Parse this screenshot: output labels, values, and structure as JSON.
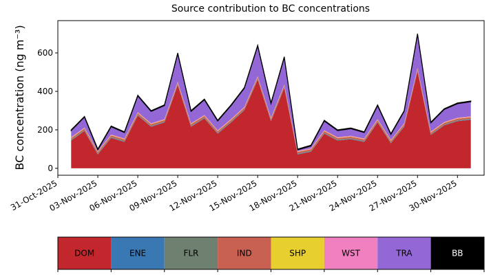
{
  "chart_data": {
    "type": "stacked_area",
    "title": "Source contribution to BC concentrations",
    "y_label": "BC concentration (ng m⁻³)",
    "x": [
      "01-Nov-2025",
      "02-Nov-2025",
      "03-Nov-2025",
      "04-Nov-2025",
      "05-Nov-2025",
      "06-Nov-2025",
      "07-Nov-2025",
      "08-Nov-2025",
      "09-Nov-2025",
      "10-Nov-2025",
      "11-Nov-2025",
      "12-Nov-2025",
      "13-Nov-2025",
      "14-Nov-2025",
      "15-Nov-2025",
      "16-Nov-2025",
      "17-Nov-2025",
      "18-Nov-2025",
      "19-Nov-2025",
      "20-Nov-2025",
      "21-Nov-2025",
      "22-Nov-2025",
      "23-Nov-2025",
      "24-Nov-2025",
      "25-Nov-2025",
      "26-Nov-2025",
      "27-Nov-2025",
      "28-Nov-2025",
      "29-Nov-2025",
      "30-Nov-2025",
      "01-Dec-2025"
    ],
    "series": [
      {
        "name": "DOM",
        "color": "#c1272d",
        "values": [
          144,
          194,
          72,
          158,
          137,
          274,
          216,
          238,
          432,
          216,
          259,
          180,
          238,
          302,
          461,
          245,
          418,
          72,
          86,
          180,
          144,
          151,
          137,
          238,
          130,
          216,
          504,
          173,
          223,
          245,
          252
        ]
      },
      {
        "name": "ENE",
        "color": "#3a78b4",
        "values": [
          2,
          2,
          2,
          2,
          2,
          2,
          2,
          2,
          2,
          2,
          2,
          2,
          2,
          2,
          2,
          2,
          2,
          2,
          2,
          2,
          2,
          2,
          2,
          2,
          2,
          2,
          2,
          2,
          2,
          2,
          2
        ]
      },
      {
        "name": "FLR",
        "color": "#6e8070",
        "values": [
          3,
          3,
          3,
          3,
          3,
          3,
          3,
          3,
          3,
          3,
          3,
          3,
          3,
          3,
          3,
          3,
          3,
          3,
          3,
          3,
          3,
          3,
          3,
          3,
          3,
          3,
          3,
          3,
          3,
          3,
          3
        ]
      },
      {
        "name": "IND",
        "color": "#c96152",
        "values": [
          8,
          8,
          8,
          8,
          8,
          8,
          8,
          8,
          8,
          8,
          8,
          8,
          8,
          8,
          8,
          8,
          8,
          8,
          8,
          8,
          8,
          8,
          8,
          8,
          8,
          8,
          8,
          8,
          8,
          8,
          8
        ]
      },
      {
        "name": "SHP",
        "color": "#e6cf2e",
        "values": [
          2,
          2,
          2,
          2,
          2,
          2,
          2,
          2,
          2,
          2,
          2,
          2,
          2,
          2,
          2,
          2,
          2,
          2,
          2,
          2,
          2,
          2,
          2,
          2,
          2,
          2,
          2,
          2,
          2,
          2,
          2
        ]
      },
      {
        "name": "WST",
        "color": "#f080c0",
        "values": [
          3,
          3,
          3,
          3,
          3,
          3,
          3,
          3,
          3,
          3,
          3,
          3,
          3,
          3,
          3,
          3,
          3,
          3,
          3,
          3,
          3,
          3,
          3,
          3,
          3,
          3,
          3,
          3,
          3,
          3,
          3
        ]
      },
      {
        "name": "TRA",
        "color": "#9467d6",
        "values": [
          34,
          54,
          6,
          40,
          31,
          84,
          62,
          70,
          146,
          62,
          79,
          48,
          70,
          96,
          157,
          73,
          140,
          6,
          12,
          48,
          34,
          37,
          31,
          70,
          28,
          62,
          174,
          45,
          65,
          73,
          76
        ]
      },
      {
        "name": "BB",
        "color": "#000000",
        "values": [
          4,
          4,
          4,
          4,
          4,
          4,
          4,
          4,
          4,
          4,
          4,
          4,
          4,
          4,
          4,
          4,
          4,
          4,
          4,
          4,
          4,
          4,
          4,
          4,
          4,
          4,
          4,
          4,
          4,
          4,
          4
        ]
      }
    ],
    "xlim": [
      "31-Oct-2025",
      "02-Dec-2025"
    ],
    "xticks": [
      "31-Oct-2025",
      "03-Nov-2025",
      "06-Nov-2025",
      "09-Nov-2025",
      "12-Nov-2025",
      "15-Nov-2025",
      "18-Nov-2025",
      "21-Nov-2025",
      "24-Nov-2025",
      "27-Nov-2025",
      "30-Nov-2025"
    ],
    "ylim": [
      -36,
      768
    ],
    "yticks": [
      0,
      200,
      400,
      600
    ]
  }
}
